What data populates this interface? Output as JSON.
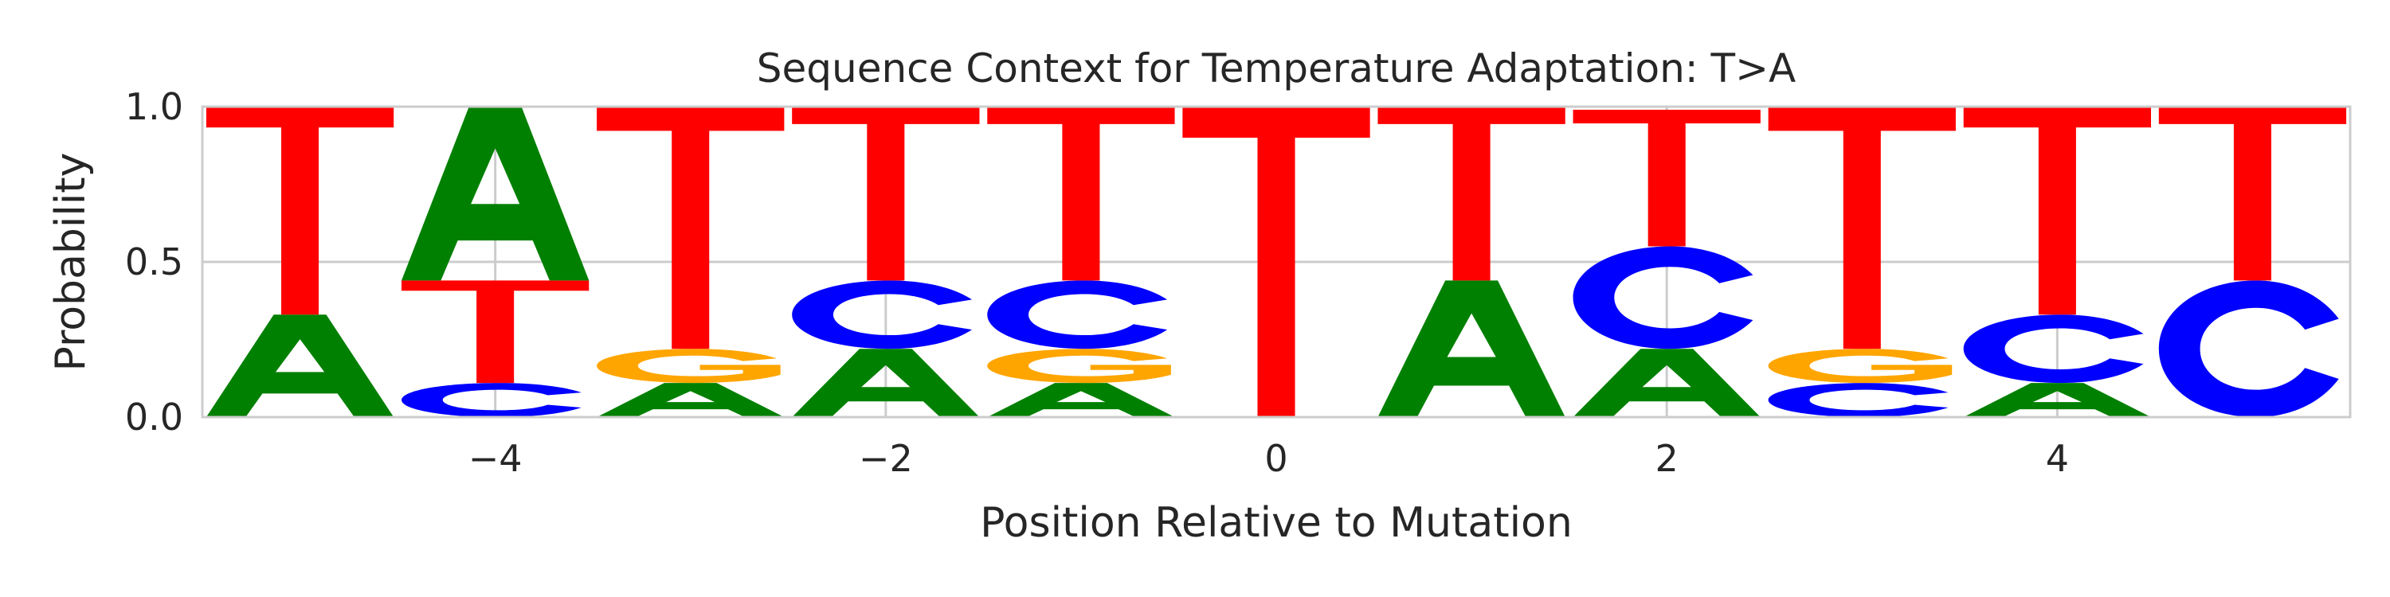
{
  "chart_data": {
    "type": "sequence-logo",
    "title": "Sequence Context for Temperature Adaptation: T>A",
    "xlabel": "Position Relative to Mutation",
    "ylabel": "Probability",
    "xlim": [
      -5.5,
      5.5
    ],
    "ylim": [
      0,
      1
    ],
    "x_ticks": [
      -4,
      -2,
      0,
      2,
      4
    ],
    "x_tick_labels": [
      "−4",
      "−2",
      "0",
      "2",
      "4"
    ],
    "y_ticks": [
      0,
      0.5,
      1
    ],
    "y_tick_labels": [
      "0.0",
      "0.5",
      "1.0"
    ],
    "grid": true,
    "colors": {
      "A": "#008000",
      "C": "#0000ff",
      "G": "#ffa500",
      "T": "#ff0000"
    },
    "positions": [
      -5,
      -4,
      -3,
      -2,
      -1,
      0,
      1,
      2,
      3,
      4,
      5
    ],
    "probabilities": [
      {
        "A": 0.33,
        "C": 0.0,
        "G": 0.0,
        "T": 0.67
      },
      {
        "A": 0.56,
        "C": 0.11,
        "G": 0.0,
        "T": 0.33
      },
      {
        "A": 0.11,
        "C": 0.0,
        "G": 0.11,
        "T": 0.78
      },
      {
        "A": 0.22,
        "C": 0.22,
        "G": 0.0,
        "T": 0.56
      },
      {
        "A": 0.11,
        "C": 0.22,
        "G": 0.11,
        "T": 0.56
      },
      {
        "A": 0.0,
        "C": 0.0,
        "G": 0.0,
        "T": 1.0
      },
      {
        "A": 0.44,
        "C": 0.0,
        "G": 0.0,
        "T": 0.56
      },
      {
        "A": 0.22,
        "C": 0.33,
        "G": 0.0,
        "T": 0.44
      },
      {
        "A": 0.0,
        "C": 0.11,
        "G": 0.11,
        "T": 0.78
      },
      {
        "A": 0.11,
        "C": 0.22,
        "G": 0.0,
        "T": 0.67
      },
      {
        "A": 0.0,
        "C": 0.44,
        "G": 0.0,
        "T": 0.56
      }
    ]
  }
}
